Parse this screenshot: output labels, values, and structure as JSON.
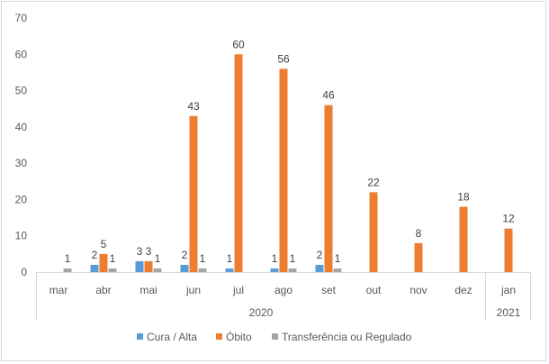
{
  "chart_data": {
    "type": "bar",
    "categories": [
      "mar",
      "abr",
      "mai",
      "jun",
      "jul",
      "ago",
      "set",
      "out",
      "nov",
      "dez",
      "jan"
    ],
    "groups": [
      {
        "label": "2020",
        "from": 0,
        "to": 9
      },
      {
        "label": "2021",
        "from": 10,
        "to": 10
      }
    ],
    "series": [
      {
        "name": "Cura / Alta",
        "color": "#5b9bd5",
        "values": [
          null,
          2,
          3,
          2,
          1,
          1,
          2,
          null,
          null,
          null,
          null
        ]
      },
      {
        "name": "Óbito",
        "color": "#ed7d31",
        "values": [
          null,
          5,
          3,
          43,
          60,
          56,
          46,
          22,
          8,
          18,
          12
        ]
      },
      {
        "name": "Transferência ou Regulado",
        "color": "#a5a5a5",
        "values": [
          1,
          1,
          1,
          1,
          null,
          1,
          1,
          null,
          null,
          null,
          null
        ]
      }
    ],
    "ylim": [
      0,
      70
    ],
    "yticks": [
      0,
      10,
      20,
      30,
      40,
      50,
      60,
      70
    ],
    "legend_position": "bottom",
    "title": "",
    "xlabel": "",
    "ylabel": ""
  }
}
